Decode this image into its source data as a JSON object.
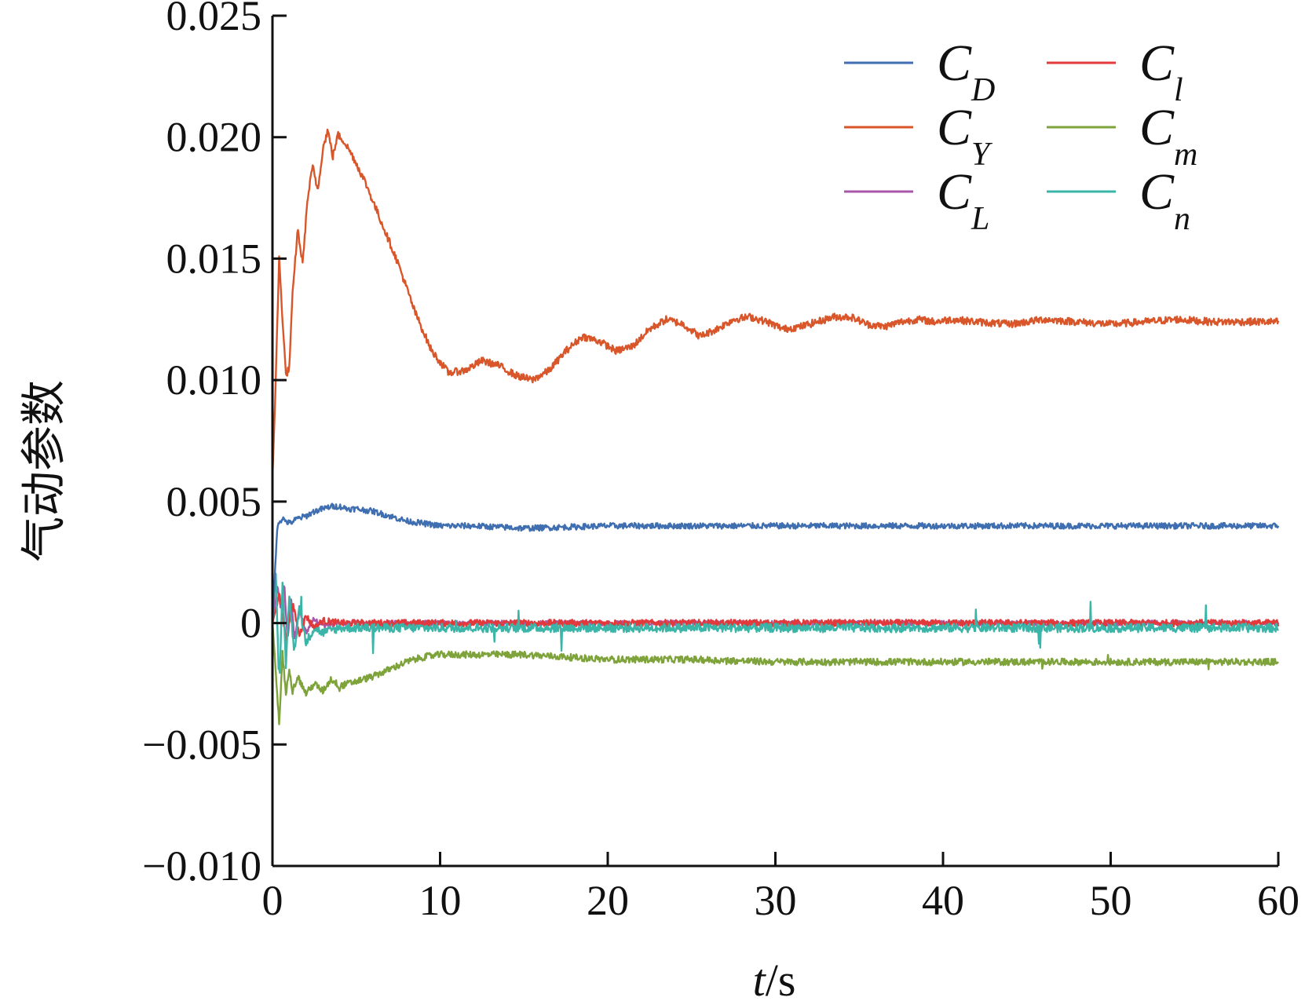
{
  "chart_data": {
    "type": "line",
    "title": "",
    "xlabel": "t/s",
    "xlabel_main": "t",
    "xlabel_unit": "/s",
    "ylabel": "气动参数",
    "xlim": [
      0,
      60
    ],
    "ylim": [
      -0.01,
      0.025
    ],
    "x_ticks": [
      0,
      10,
      20,
      30,
      40,
      50,
      60
    ],
    "x_tick_labels": [
      "0",
      "10",
      "20",
      "30",
      "40",
      "50",
      "60"
    ],
    "y_ticks": [
      -0.01,
      -0.005,
      0,
      0.005,
      0.01,
      0.015,
      0.02,
      0.025
    ],
    "y_tick_labels": [
      "−0.010",
      "−0.005",
      "0",
      "0.005",
      "0.010",
      "0.015",
      "0.020",
      "0.025"
    ],
    "grid": false,
    "legend_position": "top-right",
    "legend_columns": 2,
    "series": [
      {
        "name": "CD",
        "label_main": "C",
        "label_sub": "D",
        "color": "#3f6fb0",
        "x": [
          0,
          0.3,
          0.6,
          1,
          1.5,
          2,
          2.5,
          3,
          3.5,
          4,
          4.5,
          5,
          6,
          7,
          8,
          9,
          10,
          12,
          15,
          20,
          25,
          30,
          40,
          50,
          60
        ],
        "y": [
          0.0,
          0.0041,
          0.0043,
          0.0041,
          0.0043,
          0.0044,
          0.0046,
          0.0047,
          0.0048,
          0.0048,
          0.0047,
          0.0047,
          0.0046,
          0.0044,
          0.0042,
          0.0041,
          0.004,
          0.004,
          0.0039,
          0.004,
          0.004,
          0.004,
          0.004,
          0.004,
          0.004
        ],
        "noise": 0.00012
      },
      {
        "name": "CY",
        "label_main": "C",
        "label_sub": "Y",
        "color": "#d9562a",
        "x": [
          0,
          0.15,
          0.4,
          0.6,
          0.8,
          1.0,
          1.2,
          1.5,
          1.8,
          2.1,
          2.4,
          2.7,
          3.0,
          3.3,
          3.6,
          3.9,
          4.3,
          4.8,
          5.5,
          6.5,
          7.5,
          8.5,
          9.5,
          10.5,
          11.5,
          12.5,
          13.5,
          14.5,
          15.5,
          16.5,
          17.5,
          18.5,
          19.5,
          20.5,
          21.5,
          22.5,
          23.5,
          24.5,
          25.5,
          26.5,
          27.5,
          28.5,
          29.5,
          30.5,
          31.5,
          32.5,
          33.5,
          34.5,
          35.5,
          36.5,
          37.5,
          38.5,
          39.5,
          40.5,
          42,
          44,
          46,
          48,
          50,
          52,
          54,
          56,
          58,
          60
        ],
        "y": [
          0.006,
          0.009,
          0.015,
          0.0125,
          0.0102,
          0.0105,
          0.0135,
          0.0162,
          0.0148,
          0.0175,
          0.0188,
          0.0178,
          0.0195,
          0.0203,
          0.0192,
          0.0201,
          0.0198,
          0.0192,
          0.0182,
          0.0165,
          0.0148,
          0.0128,
          0.0112,
          0.0103,
          0.0104,
          0.0108,
          0.0106,
          0.0102,
          0.01,
          0.0104,
          0.0112,
          0.0118,
          0.0116,
          0.0112,
          0.0114,
          0.0121,
          0.0125,
          0.0123,
          0.0118,
          0.0121,
          0.0125,
          0.0126,
          0.0124,
          0.0121,
          0.0122,
          0.0124,
          0.0126,
          0.0126,
          0.0123,
          0.0122,
          0.0124,
          0.0125,
          0.0124,
          0.0125,
          0.0124,
          0.0123,
          0.0125,
          0.0124,
          0.0123,
          0.0124,
          0.0125,
          0.0124,
          0.0124,
          0.0124
        ],
        "noise": 0.00015
      },
      {
        "name": "CL",
        "label_main": "C",
        "label_sub": "L",
        "color": "#a857a8",
        "x": [
          0,
          0.3,
          0.5,
          0.7,
          0.9,
          1.1,
          1.3,
          1.6,
          2,
          2.5,
          3,
          4,
          6,
          10,
          20,
          30,
          40,
          50,
          60
        ],
        "y": [
          0.0,
          0.0015,
          0.0005,
          0.0017,
          -0.0008,
          0.0012,
          -0.0007,
          0.0006,
          -0.0004,
          0.0002,
          -0.0001,
          0.0,
          0.0,
          0.0,
          0.0,
          0.0,
          0.0,
          0.0,
          0.0
        ],
        "noise": 0.0001
      },
      {
        "name": "Cl",
        "label_main": "C",
        "label_sub": "l",
        "color": "#e23a3a",
        "x": [
          0,
          0.4,
          0.8,
          1.2,
          1.6,
          2,
          2.5,
          3,
          4,
          6,
          10,
          20,
          30,
          40,
          50,
          60
        ],
        "y": [
          0.0,
          0.0012,
          -0.0006,
          0.0008,
          -0.0005,
          0.0003,
          -0.0002,
          0.0001,
          0.0,
          0.0,
          0.0,
          0.0,
          0.0,
          0.0,
          0.0,
          0.0
        ],
        "noise": 0.00014
      },
      {
        "name": "Cm",
        "label_main": "C",
        "label_sub": "m",
        "color": "#7ea33a",
        "x": [
          0,
          0.2,
          0.4,
          0.6,
          0.8,
          1.0,
          1.2,
          1.5,
          2,
          2.5,
          3,
          3.5,
          4,
          5,
          6,
          7,
          8,
          9,
          10,
          12,
          15,
          20,
          25,
          30,
          40,
          50,
          60
        ],
        "y": [
          0.0,
          -0.002,
          -0.0042,
          -0.0012,
          -0.003,
          -0.0018,
          -0.0028,
          -0.0022,
          -0.0029,
          -0.0025,
          -0.0028,
          -0.0023,
          -0.0026,
          -0.0024,
          -0.0022,
          -0.0019,
          -0.0016,
          -0.0014,
          -0.0013,
          -0.0013,
          -0.0013,
          -0.0015,
          -0.0015,
          -0.0016,
          -0.0016,
          -0.0016,
          -0.0016
        ],
        "noise": 0.00014
      },
      {
        "name": "Cn",
        "label_main": "C",
        "label_sub": "n",
        "color": "#3ab5a8",
        "x": [
          0,
          0.2,
          0.4,
          0.6,
          0.8,
          1.0,
          1.3,
          1.6,
          2,
          2.5,
          3,
          4,
          6,
          10,
          20,
          30,
          40,
          50,
          60
        ],
        "y": [
          0.0,
          0.0022,
          -0.0028,
          0.0015,
          -0.0018,
          0.0012,
          -0.0012,
          0.0006,
          -0.0008,
          -0.0002,
          -0.0004,
          -0.0002,
          -0.0002,
          -0.0002,
          -0.0002,
          -0.0002,
          -0.0002,
          -0.0002,
          -0.0002
        ],
        "noise": 0.00018
      }
    ]
  }
}
